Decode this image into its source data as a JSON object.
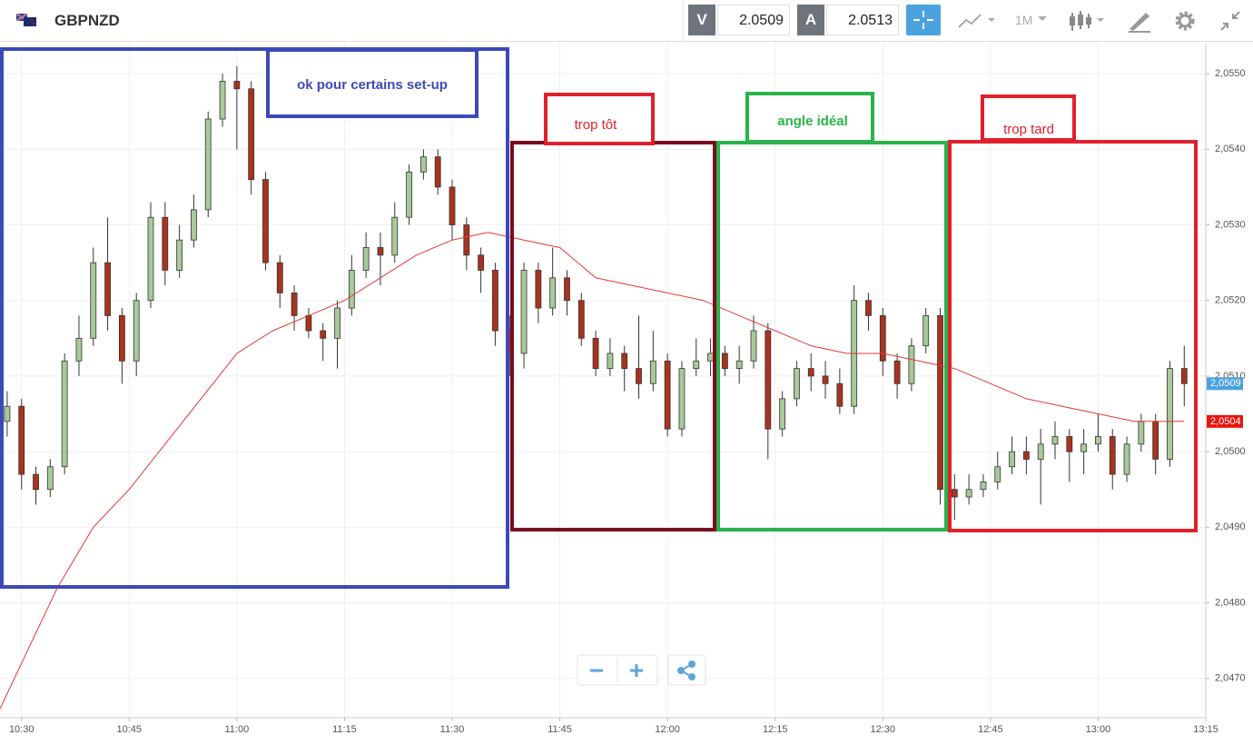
{
  "header": {
    "symbol": "GBPNZD",
    "bid_label": "V",
    "bid": "2.0509",
    "ask_label": "A",
    "ask": "2.0513",
    "timeframe": "1M"
  },
  "chart_data": {
    "type": "candlestick",
    "ylim": [
      2.04648,
      2.05541
    ],
    "yticks": [
      {
        "value": 2.047,
        "label": "2,0470"
      },
      {
        "value": 2.048,
        "label": "2,0480"
      },
      {
        "value": 2.049,
        "label": "2,0490"
      },
      {
        "value": 2.05,
        "label": "2,0500"
      },
      {
        "value": 2.051,
        "label": "2,0510"
      },
      {
        "value": 2.052,
        "label": "2,0520"
      },
      {
        "value": 2.053,
        "label": "2,0530"
      },
      {
        "value": 2.054,
        "label": "2,0540"
      },
      {
        "value": 2.055,
        "label": "2,0550"
      }
    ],
    "xlim": [
      "10:27",
      "13:15"
    ],
    "xticks": [
      "10:30",
      "10:45",
      "11:00",
      "11:15",
      "11:30",
      "11:45",
      "12:00",
      "12:15",
      "12:30",
      "12:45",
      "13:00",
      "13:15"
    ],
    "grid": true,
    "up_color": "#a9c99a",
    "down_color": "#a8331f",
    "candles": {
      "x": [
        "10:28",
        "10:30",
        "10:32",
        "10:34",
        "10:36",
        "10:38",
        "10:40",
        "10:42",
        "10:44",
        "10:46",
        "10:48",
        "10:50",
        "10:52",
        "10:54",
        "10:56",
        "10:58",
        "11:00",
        "11:02",
        "11:04",
        "11:06",
        "11:08",
        "11:10",
        "11:12",
        "11:14",
        "11:16",
        "11:18",
        "11:20",
        "11:22",
        "11:24",
        "11:26",
        "11:28",
        "11:30",
        "11:32",
        "11:34",
        "11:36",
        "11:38",
        "11:40",
        "11:42",
        "11:44",
        "11:46",
        "11:48",
        "11:50",
        "11:52",
        "11:54",
        "11:56",
        "11:58",
        "12:00",
        "12:02",
        "12:04",
        "12:06",
        "12:08",
        "12:10",
        "12:12",
        "12:14",
        "12:16",
        "12:18",
        "12:20",
        "12:22",
        "12:24",
        "12:26",
        "12:28",
        "12:30",
        "12:32",
        "12:34",
        "12:36",
        "12:38",
        "12:40",
        "12:42",
        "12:44",
        "12:46",
        "12:48",
        "12:50",
        "12:52",
        "12:54",
        "12:56",
        "12:58",
        "13:00",
        "13:02",
        "13:04",
        "13:06",
        "13:08",
        "13:10",
        "13:12"
      ],
      "open": [
        2.0504,
        2.0506,
        2.0497,
        2.0495,
        2.0498,
        2.0512,
        2.0515,
        2.0525,
        2.0518,
        2.0512,
        2.052,
        2.0531,
        2.0524,
        2.0528,
        2.0532,
        2.0544,
        2.0549,
        2.0548,
        2.0536,
        2.0525,
        2.0521,
        2.0518,
        2.0516,
        2.0515,
        2.0519,
        2.0524,
        2.0527,
        2.0526,
        2.0531,
        2.0537,
        2.0539,
        2.0535,
        2.053,
        2.0526,
        2.0524,
        2.0516,
        2.0513,
        2.0524,
        2.0519,
        2.0523,
        2.052,
        2.0515,
        2.0511,
        2.0513,
        2.0511,
        2.0509,
        2.0512,
        2.0503,
        2.0511,
        2.0512,
        2.0513,
        2.0511,
        2.0512,
        2.0516,
        2.0503,
        2.0507,
        2.0511,
        2.051,
        2.0509,
        2.0506,
        2.052,
        2.0518,
        2.0512,
        2.0509,
        2.0514,
        2.0518,
        2.0495,
        2.0494,
        2.0495,
        2.0496,
        2.0498,
        2.05,
        2.0499,
        2.0501,
        2.0502,
        2.05,
        2.0501,
        2.0502,
        2.0497,
        2.0501,
        2.0504,
        2.0499,
        2.0511
      ],
      "high": [
        2.0508,
        2.0507,
        2.0498,
        2.0499,
        2.0513,
        2.0518,
        2.0527,
        2.0531,
        2.0519,
        2.0521,
        2.0533,
        2.0533,
        2.053,
        2.0534,
        2.0545,
        2.055,
        2.0551,
        2.0549,
        2.0537,
        2.0526,
        2.0522,
        2.0519,
        2.0517,
        2.052,
        2.0526,
        2.0529,
        2.0529,
        2.0533,
        2.0538,
        2.054,
        2.054,
        2.0536,
        2.0531,
        2.0527,
        2.0525,
        2.0518,
        2.0525,
        2.0525,
        2.0527,
        2.0524,
        2.0521,
        2.0516,
        2.0515,
        2.0514,
        2.0518,
        2.0516,
        2.0513,
        2.0512,
        2.0515,
        2.0515,
        2.0514,
        2.0514,
        2.0518,
        2.0517,
        2.0508,
        2.0512,
        2.0513,
        2.0512,
        2.0511,
        2.0522,
        2.0521,
        2.0519,
        2.0513,
        2.0515,
        2.0519,
        2.0519,
        2.0497,
        2.0497,
        2.0497,
        2.05,
        2.0502,
        2.0502,
        2.0503,
        2.0504,
        2.0503,
        2.0503,
        2.0505,
        2.0503,
        2.0502,
        2.0505,
        2.0505,
        2.0512,
        2.0514
      ],
      "low": [
        2.0502,
        2.0495,
        2.0493,
        2.0494,
        2.0497,
        2.051,
        2.0514,
        2.0516,
        2.0509,
        2.051,
        2.0519,
        2.0522,
        2.0523,
        2.0527,
        2.0531,
        2.0543,
        2.054,
        2.0534,
        2.0524,
        2.0519,
        2.0516,
        2.0515,
        2.0512,
        2.0511,
        2.0518,
        2.0523,
        2.0522,
        2.0525,
        2.053,
        2.0536,
        2.0534,
        2.0528,
        2.0524,
        2.0521,
        2.0514,
        2.051,
        2.0511,
        2.0517,
        2.0518,
        2.0518,
        2.0514,
        2.051,
        2.051,
        2.0508,
        2.0507,
        2.0508,
        2.0502,
        2.0502,
        2.051,
        2.051,
        2.051,
        2.0509,
        2.0511,
        2.0499,
        2.0502,
        2.0506,
        2.0508,
        2.0507,
        2.0505,
        2.0505,
        2.0516,
        2.051,
        2.0507,
        2.0508,
        2.0513,
        2.0493,
        2.0491,
        2.0493,
        2.0494,
        2.0495,
        2.0497,
        2.0497,
        2.0493,
        2.0499,
        2.0496,
        2.0497,
        2.05,
        2.0495,
        2.0496,
        2.05,
        2.0497,
        2.0498,
        2.0506
      ],
      "close": [
        2.0506,
        2.0497,
        2.0495,
        2.0498,
        2.0512,
        2.0515,
        2.0525,
        2.0518,
        2.0512,
        2.052,
        2.0531,
        2.0524,
        2.0528,
        2.0532,
        2.0544,
        2.0549,
        2.0548,
        2.0536,
        2.0525,
        2.0521,
        2.0518,
        2.0516,
        2.0515,
        2.0519,
        2.0524,
        2.0527,
        2.0526,
        2.0531,
        2.0537,
        2.0539,
        2.0535,
        2.053,
        2.0526,
        2.0524,
        2.0516,
        2.0513,
        2.0524,
        2.0519,
        2.0523,
        2.052,
        2.0515,
        2.0511,
        2.0513,
        2.0511,
        2.0509,
        2.0512,
        2.0503,
        2.0511,
        2.0512,
        2.0513,
        2.0511,
        2.0512,
        2.0516,
        2.0503,
        2.0507,
        2.0511,
        2.051,
        2.0509,
        2.0506,
        2.052,
        2.0518,
        2.0512,
        2.0509,
        2.0514,
        2.0518,
        2.0495,
        2.0494,
        2.0495,
        2.0496,
        2.0498,
        2.05,
        2.0499,
        2.0501,
        2.0502,
        2.05,
        2.0501,
        2.0502,
        2.0497,
        2.0501,
        2.0504,
        2.0499,
        2.0511,
        2.0509
      ]
    },
    "ma": {
      "color": "#e53935",
      "x": [
        "10:27",
        "10:35",
        "10:40",
        "10:45",
        "10:50",
        "10:55",
        "11:00",
        "11:05",
        "11:10",
        "11:15",
        "11:20",
        "11:25",
        "11:30",
        "11:35",
        "11:40",
        "11:45",
        "11:50",
        "11:55",
        "12:00",
        "12:05",
        "12:10",
        "12:15",
        "12:20",
        "12:25",
        "12:30",
        "12:35",
        "12:40",
        "12:45",
        "12:50",
        "12:55",
        "13:00",
        "13:05",
        "13:10",
        "13:12"
      ],
      "values": [
        2.0466,
        2.0482,
        2.049,
        2.0495,
        2.0501,
        2.0507,
        2.0513,
        2.0516,
        2.0518,
        2.052,
        2.0523,
        2.0526,
        2.0528,
        2.0529,
        2.0528,
        2.0527,
        2.0523,
        2.0522,
        2.0521,
        2.052,
        2.0518,
        2.0516,
        2.0514,
        2.0513,
        2.0513,
        2.0512,
        2.0511,
        2.0509,
        2.0507,
        2.0506,
        2.0505,
        2.0504,
        2.0504,
        2.0504
      ]
    },
    "price_tags": [
      {
        "value": 2.0509,
        "label": "2,0509",
        "color": "#4aa3df"
      },
      {
        "value": 2.0504,
        "label": "2,0504",
        "color": "#e8150f"
      }
    ],
    "annotations": [
      "ok pour certains set-up",
      "trop tôt",
      "angle idéal",
      "trop tard"
    ]
  }
}
